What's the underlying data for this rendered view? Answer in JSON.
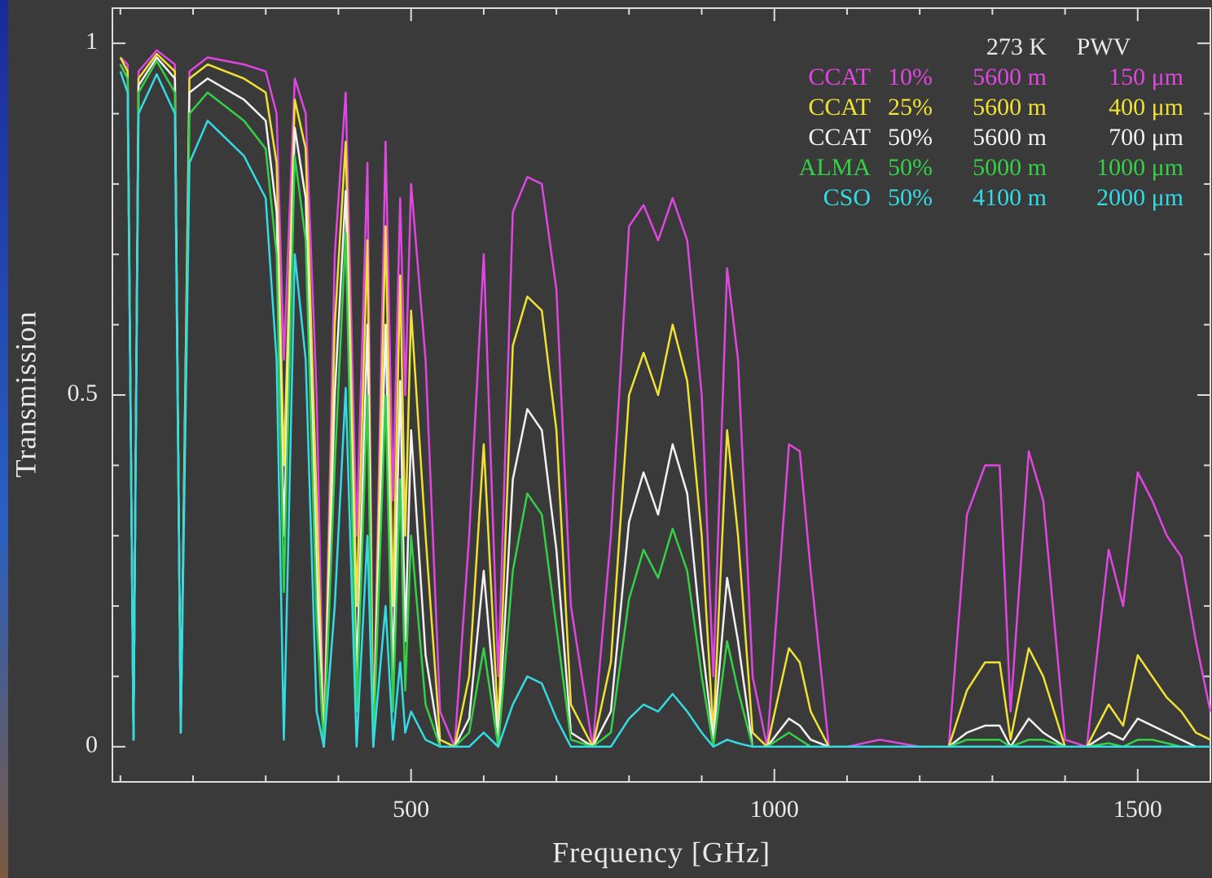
{
  "chart_data": {
    "type": "line",
    "x_label": "Frequency [GHz]",
    "y_label": "Transmission",
    "xlim": [
      89,
      1600
    ],
    "ylim": [
      -0.05,
      1.05
    ],
    "xticks": [
      500,
      1000,
      1500
    ],
    "yticks": [
      0,
      0.5,
      1
    ],
    "xminorticks": [
      100,
      200,
      300,
      400,
      600,
      700,
      800,
      900,
      1100,
      1200,
      1300,
      1400
    ],
    "yminorticks": [
      0.1,
      0.2,
      0.3,
      0.4,
      0.6,
      0.7,
      0.8,
      0.9
    ],
    "legend": "upper right",
    "legend_header": {
      "temperature": "273 K",
      "pwv": "PWV"
    },
    "x": [
      100,
      110,
      118,
      125,
      150,
      175,
      183,
      195,
      220,
      270,
      300,
      315,
      325,
      340,
      355,
      370,
      380,
      395,
      410,
      425,
      440,
      448,
      465,
      475,
      485,
      492,
      500,
      520,
      540,
      560,
      580,
      600,
      620,
      640,
      660,
      680,
      700,
      720,
      750,
      775,
      800,
      820,
      840,
      860,
      880,
      900,
      916,
      935,
      950,
      970,
      990,
      1020,
      1035,
      1050,
      1075,
      1100,
      1145,
      1200,
      1240,
      1265,
      1290,
      1310,
      1325,
      1350,
      1370,
      1400,
      1430,
      1460,
      1480,
      1500,
      1520,
      1540,
      1560,
      1580,
      1600
    ],
    "series": [
      {
        "name": "CCAT",
        "percentile": "10%",
        "altitude": "5600 m",
        "pwv": "150 μm",
        "color": "#e046e0",
        "values": [
          0.98,
          0.97,
          0.01,
          0.96,
          0.99,
          0.97,
          0.02,
          0.96,
          0.98,
          0.97,
          0.96,
          0.9,
          0.55,
          0.95,
          0.9,
          0.5,
          0,
          0.7,
          0.93,
          0.3,
          0.83,
          0,
          0.86,
          0.35,
          0.78,
          0.5,
          0.8,
          0.55,
          0.05,
          0,
          0.3,
          0.7,
          0.1,
          0.76,
          0.81,
          0.8,
          0.65,
          0.2,
          0,
          0.3,
          0.74,
          0.77,
          0.72,
          0.78,
          0.72,
          0.5,
          0.1,
          0.68,
          0.55,
          0.1,
          0,
          0.43,
          0.42,
          0.25,
          0,
          0,
          0.01,
          0,
          0,
          0.33,
          0.4,
          0.4,
          0.05,
          0.42,
          0.35,
          0.01,
          0,
          0.28,
          0.2,
          0.39,
          0.35,
          0.3,
          0.27,
          0.15,
          0.05
        ]
      },
      {
        "name": "CCAT",
        "percentile": "25%",
        "altitude": "5600 m",
        "pwv": "400 μm",
        "color": "#f0e234",
        "values": [
          0.98,
          0.96,
          0.01,
          0.95,
          0.985,
          0.96,
          0.02,
          0.95,
          0.97,
          0.95,
          0.93,
          0.83,
          0.4,
          0.92,
          0.85,
          0.35,
          0,
          0.6,
          0.86,
          0.2,
          0.72,
          0,
          0.74,
          0.2,
          0.67,
          0.3,
          0.62,
          0.3,
          0.01,
          0,
          0.1,
          0.43,
          0.03,
          0.57,
          0.64,
          0.62,
          0.45,
          0.06,
          0,
          0.12,
          0.5,
          0.56,
          0.5,
          0.6,
          0.52,
          0.3,
          0.02,
          0.45,
          0.3,
          0.02,
          0,
          0.14,
          0.12,
          0.05,
          0,
          0,
          0,
          0,
          0,
          0.08,
          0.12,
          0.12,
          0.01,
          0.14,
          0.1,
          0,
          0,
          0.06,
          0.03,
          0.13,
          0.1,
          0.07,
          0.05,
          0.02,
          0.01
        ]
      },
      {
        "name": "CCAT",
        "percentile": "50%",
        "altitude": "5600 m",
        "pwv": "700 μm",
        "color": "#f2f2f2",
        "values": [
          0.97,
          0.95,
          0.01,
          0.94,
          0.98,
          0.95,
          0.02,
          0.93,
          0.95,
          0.92,
          0.89,
          0.76,
          0.3,
          0.88,
          0.78,
          0.25,
          0,
          0.5,
          0.79,
          0.1,
          0.6,
          0,
          0.6,
          0.1,
          0.52,
          0.15,
          0.45,
          0.13,
          0,
          0,
          0.04,
          0.25,
          0.01,
          0.38,
          0.48,
          0.45,
          0.28,
          0.02,
          0,
          0.05,
          0.32,
          0.39,
          0.33,
          0.43,
          0.36,
          0.15,
          0.01,
          0.24,
          0.15,
          0,
          0,
          0.04,
          0.03,
          0.01,
          0,
          0,
          0,
          0,
          0,
          0.02,
          0.03,
          0.03,
          0,
          0.04,
          0.02,
          0,
          0,
          0.02,
          0.01,
          0.04,
          0.03,
          0.02,
          0.01,
          0,
          0
        ]
      },
      {
        "name": "ALMA",
        "percentile": "50%",
        "altitude": "5000 m",
        "pwv": "1000 μm",
        "color": "#34d046",
        "values": [
          0.97,
          0.95,
          0.01,
          0.93,
          0.975,
          0.93,
          0.02,
          0.9,
          0.93,
          0.89,
          0.85,
          0.7,
          0.22,
          0.84,
          0.72,
          0.18,
          0,
          0.4,
          0.73,
          0.05,
          0.5,
          0,
          0.5,
          0.05,
          0.38,
          0.08,
          0.3,
          0.06,
          0,
          0,
          0.02,
          0.14,
          0,
          0.25,
          0.36,
          0.33,
          0.17,
          0.01,
          0,
          0.02,
          0.21,
          0.28,
          0.24,
          0.31,
          0.25,
          0.1,
          0,
          0.15,
          0.08,
          0,
          0,
          0.02,
          0.01,
          0,
          0,
          0,
          0,
          0,
          0,
          0.01,
          0.01,
          0.01,
          0,
          0.01,
          0.01,
          0,
          0,
          0.005,
          0,
          0.01,
          0.01,
          0.005,
          0,
          0,
          0
        ]
      },
      {
        "name": "CSO",
        "percentile": "50%",
        "altitude": "4100 m",
        "pwv": "2000 μm",
        "color": "#34dae4",
        "values": [
          0.96,
          0.93,
          0.01,
          0.9,
          0.956,
          0.9,
          0.02,
          0.83,
          0.89,
          0.84,
          0.78,
          0.55,
          0.01,
          0.7,
          0.55,
          0.05,
          0,
          0.2,
          0.51,
          0,
          0.3,
          0,
          0.2,
          0.01,
          0.12,
          0.02,
          0.05,
          0.01,
          0,
          0,
          0,
          0.02,
          0,
          0.06,
          0.1,
          0.09,
          0.04,
          0,
          0,
          0,
          0.04,
          0.06,
          0.05,
          0.075,
          0.05,
          0.02,
          0,
          0.01,
          0.005,
          0,
          0,
          0,
          0,
          0,
          0,
          0,
          0,
          0,
          0,
          0,
          0,
          0,
          0,
          0,
          0,
          0,
          0,
          0,
          0,
          0,
          0,
          0,
          0,
          0,
          0
        ]
      }
    ]
  }
}
